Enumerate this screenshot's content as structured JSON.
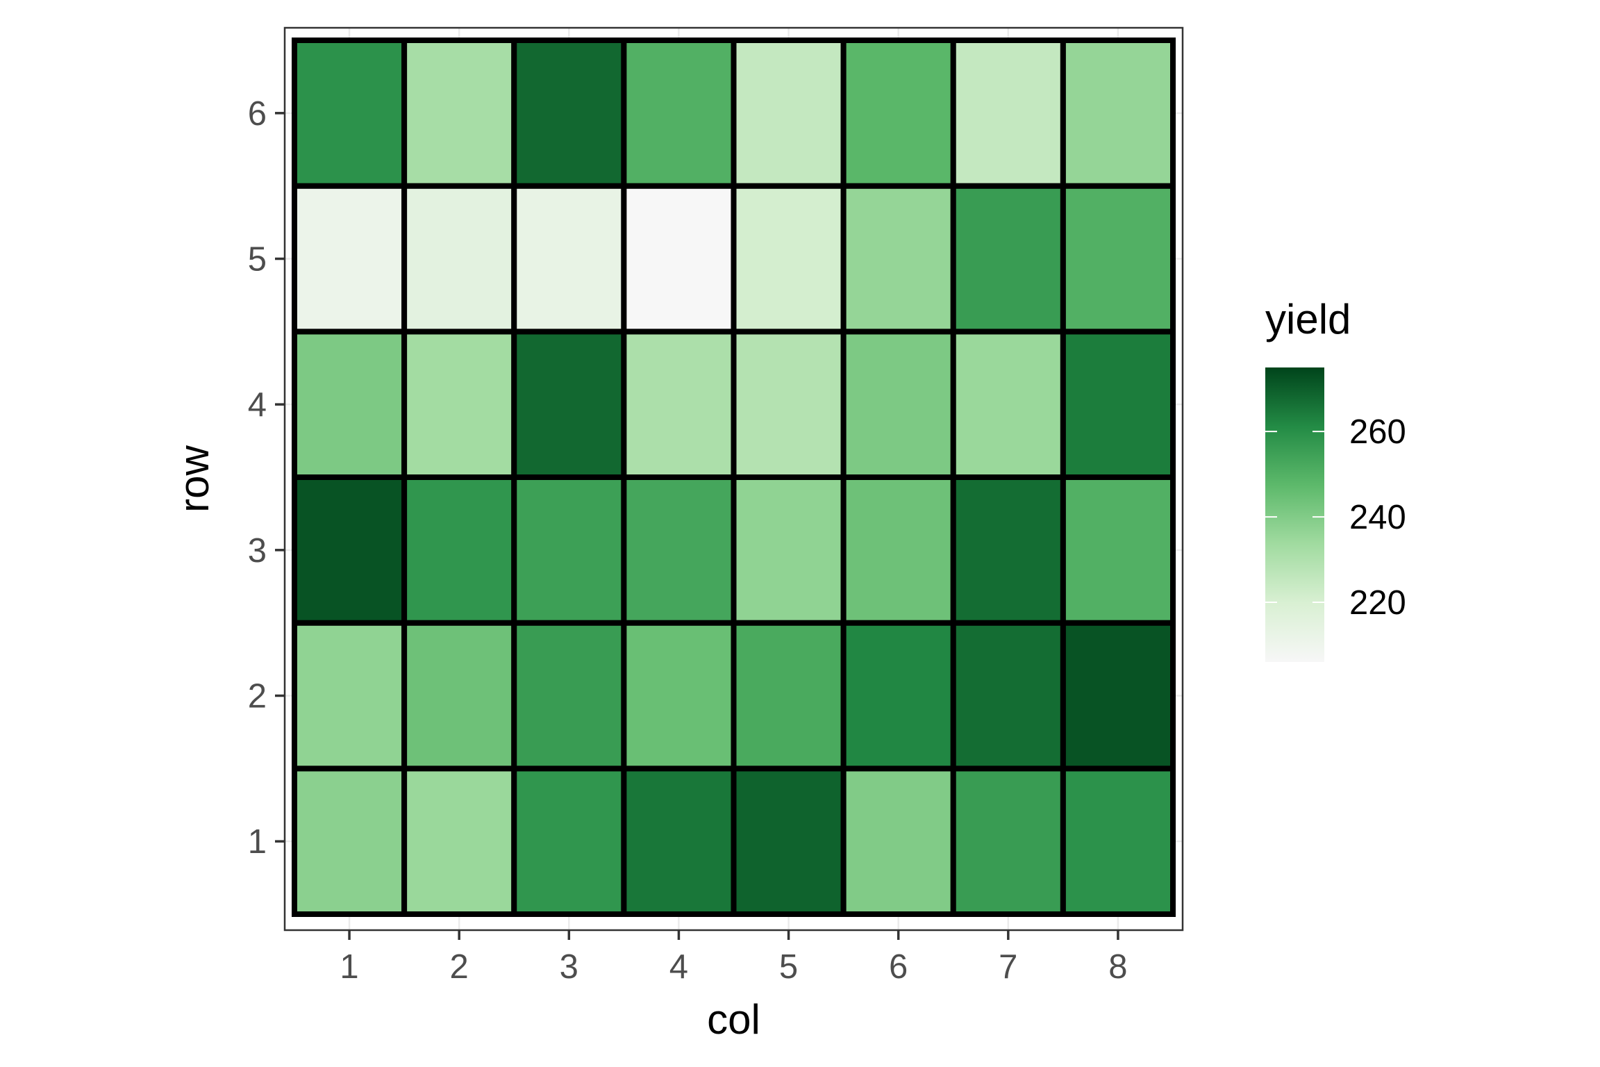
{
  "chart_data": {
    "type": "heatmap",
    "xlabel": "col",
    "ylabel": "row",
    "x_categories": [
      "1",
      "2",
      "3",
      "4",
      "5",
      "6",
      "7",
      "8"
    ],
    "y_categories": [
      "1",
      "2",
      "3",
      "4",
      "5",
      "6"
    ],
    "values": [
      [
        238,
        235,
        258,
        265,
        269,
        240,
        256,
        259
      ],
      [
        237,
        244,
        256,
        245,
        252,
        262,
        267,
        272
      ],
      [
        272,
        258,
        255,
        253,
        237,
        244,
        267,
        250
      ],
      [
        241,
        233,
        268,
        231,
        229,
        241,
        235,
        264
      ],
      [
        211,
        215,
        213,
        206,
        221,
        236,
        256,
        250
      ],
      [
        259,
        232,
        268,
        250,
        225,
        248,
        225,
        236
      ]
    ],
    "legend": {
      "title": "yield",
      "ticks": [
        220,
        240,
        260
      ],
      "range": [
        206,
        275
      ],
      "colors": [
        "#f7f7f7",
        "#d9f0d3",
        "#a1dba0",
        "#5db96b",
        "#238b45",
        "#00441b"
      ]
    },
    "grid": true,
    "legend_position": "right",
    "panel_border_color": "#333333",
    "tile_border_color": "#000000"
  }
}
